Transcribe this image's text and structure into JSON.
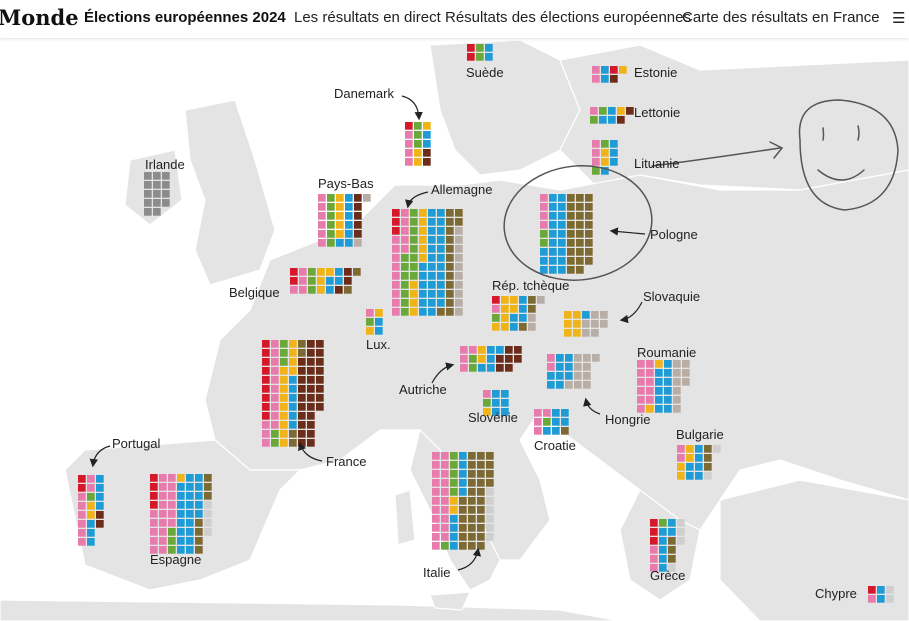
{
  "header": {
    "logo_text": "Monde",
    "title": "Élections européennes 2024",
    "links": [
      "Les résultats en direct",
      "Résultats des élections européennes",
      "Carte des résultats en France"
    ],
    "menu_icon": "menu-icon"
  },
  "colors": {
    "pink": "#e77bab",
    "red": "#d7182a",
    "green": "#6aa83a",
    "yellow": "#f0b419",
    "blue": "#1f9bd6",
    "olive": "#7d6a33",
    "brown": "#6b2d1a",
    "grey": "#b8aea6",
    "lightgrey": "#cfcfcf",
    "darkgrey": "#8c8c8c"
  },
  "countries": [
    {
      "name": "Suède",
      "label": "Suède",
      "seats": [
        {
          "p": "red",
          "n": 2
        },
        {
          "p": "green",
          "n": 2
        },
        {
          "p": "blue",
          "n": 2
        }
      ]
    },
    {
      "name": "Estonie",
      "label": "Estonie",
      "seats": [
        {
          "p": "pink",
          "n": 2
        },
        {
          "p": "blue",
          "n": 2
        },
        {
          "p": "red",
          "n": 1
        },
        {
          "p": "brown",
          "n": 1
        },
        {
          "p": "yellow",
          "n": 1
        }
      ]
    },
    {
      "name": "Lettonie",
      "label": "Lettonie",
      "seats": [
        {
          "p": "pink",
          "n": 1
        },
        {
          "p": "green",
          "n": 2
        },
        {
          "p": "blue",
          "n": 3
        },
        {
          "p": "yellow",
          "n": 1
        },
        {
          "p": "brown",
          "n": 2
        }
      ]
    },
    {
      "name": "Lituanie",
      "label": "Lituanie",
      "seats": [
        {
          "p": "pink",
          "n": 3
        },
        {
          "p": "green",
          "n": 2
        },
        {
          "p": "yellow",
          "n": 2
        },
        {
          "p": "blue",
          "n": 4
        }
      ]
    },
    {
      "name": "Danemark",
      "label": "Danemark",
      "seats": [
        {
          "p": "red",
          "n": 1
        },
        {
          "p": "pink",
          "n": 4
        },
        {
          "p": "green",
          "n": 3
        },
        {
          "p": "yellow",
          "n": 3
        },
        {
          "p": "blue",
          "n": 2
        },
        {
          "p": "brown",
          "n": 2
        }
      ]
    },
    {
      "name": "Irlande",
      "label": "Irlande",
      "seats": [
        {
          "p": "darkgrey",
          "n": 14
        }
      ]
    },
    {
      "name": "Pays-Bas",
      "label": "Pays-Bas",
      "seats": [
        {
          "p": "pink",
          "n": 6
        },
        {
          "p": "green",
          "n": 6
        },
        {
          "p": "yellow",
          "n": 5
        },
        {
          "p": "blue",
          "n": 7
        },
        {
          "p": "brown",
          "n": 5
        },
        {
          "p": "grey",
          "n": 2
        }
      ]
    },
    {
      "name": "Allemagne",
      "label": "Allemagne",
      "seats": [
        {
          "p": "red",
          "n": 3
        },
        {
          "p": "pink",
          "n": 14
        },
        {
          "p": "green",
          "n": 15
        },
        {
          "p": "yellow",
          "n": 10
        },
        {
          "p": "blue",
          "n": 29
        },
        {
          "p": "olive",
          "n": 15
        },
        {
          "p": "grey",
          "n": 10
        }
      ]
    },
    {
      "name": "Pologne",
      "label": "Pologne",
      "seats": [
        {
          "p": "pink",
          "n": 4
        },
        {
          "p": "green",
          "n": 2
        },
        {
          "p": "blue",
          "n": 21
        },
        {
          "p": "olive",
          "n": 26
        }
      ]
    },
    {
      "name": "Belgique",
      "label": "Belgique",
      "seats": [
        {
          "p": "red",
          "n": 2
        },
        {
          "p": "pink",
          "n": 4
        },
        {
          "p": "green",
          "n": 3
        },
        {
          "p": "yellow",
          "n": 4
        },
        {
          "p": "blue",
          "n": 4
        },
        {
          "p": "brown",
          "n": 3
        },
        {
          "p": "olive",
          "n": 2
        }
      ]
    },
    {
      "name": "Lux.",
      "label": "Lux.",
      "seats": [
        {
          "p": "pink",
          "n": 1
        },
        {
          "p": "green",
          "n": 1
        },
        {
          "p": "yellow",
          "n": 2
        },
        {
          "p": "blue",
          "n": 2
        }
      ]
    },
    {
      "name": "Rép. tchèque",
      "label": "Rép. tchèque",
      "seats": [
        {
          "p": "red",
          "n": 1
        },
        {
          "p": "pink",
          "n": 1
        },
        {
          "p": "green",
          "n": 1
        },
        {
          "p": "yellow",
          "n": 7
        },
        {
          "p": "blue",
          "n": 5
        },
        {
          "p": "olive",
          "n": 3
        },
        {
          "p": "grey",
          "n": 3
        }
      ]
    },
    {
      "name": "Slovaquie",
      "label": "Slovaquie",
      "seats": [
        {
          "p": "yellow",
          "n": 6
        },
        {
          "p": "blue",
          "n": 1
        },
        {
          "p": "grey",
          "n": 7
        }
      ]
    },
    {
      "name": "France",
      "label": "France",
      "seats": [
        {
          "p": "red",
          "n": 9
        },
        {
          "p": "pink",
          "n": 13
        },
        {
          "p": "green",
          "n": 5
        },
        {
          "p": "yellow",
          "n": 13
        },
        {
          "p": "blue",
          "n": 6
        },
        {
          "p": "olive",
          "n": 4
        },
        {
          "p": "brown",
          "n": 30
        }
      ]
    },
    {
      "name": "Autriche",
      "label": "Autriche",
      "seats": [
        {
          "p": "pink",
          "n": 4
        },
        {
          "p": "green",
          "n": 2
        },
        {
          "p": "yellow",
          "n": 2
        },
        {
          "p": "blue",
          "n": 5
        },
        {
          "p": "brown",
          "n": 7
        }
      ]
    },
    {
      "name": "Slovénie",
      "label": "Slovénie",
      "seats": [
        {
          "p": "pink",
          "n": 1
        },
        {
          "p": "green",
          "n": 1
        },
        {
          "p": "yellow",
          "n": 1
        },
        {
          "p": "blue",
          "n": 6
        }
      ]
    },
    {
      "name": "Hongrie",
      "label": "Hongrie",
      "seats": [
        {
          "p": "pink",
          "n": 2
        },
        {
          "p": "blue",
          "n": 9
        },
        {
          "p": "grey",
          "n": 10
        }
      ]
    },
    {
      "name": "Roumanie",
      "label": "Roumanie",
      "seats": [
        {
          "p": "pink",
          "n": 11
        },
        {
          "p": "yellow",
          "n": 2
        },
        {
          "p": "blue",
          "n": 11
        },
        {
          "p": "grey",
          "n": 9
        }
      ]
    },
    {
      "name": "Croatie",
      "label": "Croatie",
      "seats": [
        {
          "p": "pink",
          "n": 4
        },
        {
          "p": "green",
          "n": 1
        },
        {
          "p": "blue",
          "n": 6
        },
        {
          "p": "olive",
          "n": 1
        }
      ]
    },
    {
      "name": "Bulgarie",
      "label": "Bulgarie",
      "seats": [
        {
          "p": "pink",
          "n": 2
        },
        {
          "p": "yellow",
          "n": 4
        },
        {
          "p": "blue",
          "n": 6
        },
        {
          "p": "olive",
          "n": 3
        },
        {
          "p": "lightgrey",
          "n": 2
        }
      ]
    },
    {
      "name": "Portugal",
      "label": "Portugal",
      "seats": [
        {
          "p": "red",
          "n": 2
        },
        {
          "p": "pink",
          "n": 8
        },
        {
          "p": "green",
          "n": 1
        },
        {
          "p": "yellow",
          "n": 2
        },
        {
          "p": "blue",
          "n": 7
        },
        {
          "p": "brown",
          "n": 2
        }
      ]
    },
    {
      "name": "Espagne",
      "label": "Espagne",
      "seats": [
        {
          "p": "red",
          "n": 4
        },
        {
          "p": "pink",
          "n": 20
        },
        {
          "p": "green",
          "n": 3
        },
        {
          "p": "yellow",
          "n": 1
        },
        {
          "p": "blue",
          "n": 22
        },
        {
          "p": "olive",
          "n": 7
        },
        {
          "p": "lightgrey",
          "n": 4
        }
      ]
    },
    {
      "name": "Italie",
      "label": "Italie",
      "seats": [
        {
          "p": "pink",
          "n": 21
        },
        {
          "p": "green",
          "n": 6
        },
        {
          "p": "yellow",
          "n": 2
        },
        {
          "p": "blue",
          "n": 9
        },
        {
          "p": "olive",
          "n": 32
        },
        {
          "p": "lightgrey",
          "n": 6
        }
      ]
    },
    {
      "name": "Grèce",
      "label": "Grèce",
      "seats": [
        {
          "p": "red",
          "n": 3
        },
        {
          "p": "pink",
          "n": 3
        },
        {
          "p": "green",
          "n": 1
        },
        {
          "p": "blue",
          "n": 7
        },
        {
          "p": "olive",
          "n": 3
        },
        {
          "p": "lightgrey",
          "n": 4
        }
      ]
    },
    {
      "name": "Chypre",
      "label": "Chypre",
      "seats": [
        {
          "p": "red",
          "n": 1
        },
        {
          "p": "pink",
          "n": 1
        },
        {
          "p": "blue",
          "n": 2
        },
        {
          "p": "lightgrey",
          "n": 2
        }
      ]
    }
  ]
}
